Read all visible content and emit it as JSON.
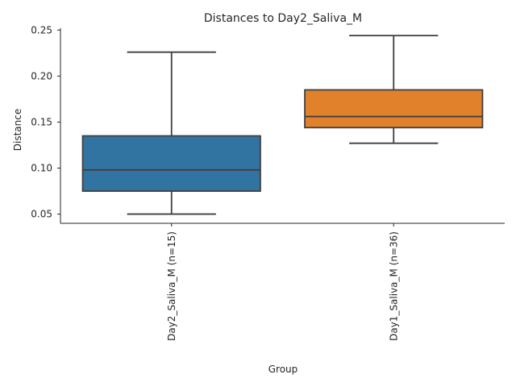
{
  "chart_data": {
    "type": "boxplot",
    "title": "Distances to Day2_Saliva_M",
    "xlabel": "Group",
    "ylabel": "Distance",
    "ylim": [
      0.04,
      0.252
    ],
    "y_ticks": [
      0.05,
      0.1,
      0.15,
      0.2,
      0.25
    ],
    "y_tick_labels": [
      "0.05",
      "0.10",
      "0.15",
      "0.20",
      "0.25"
    ],
    "grid": false,
    "categories": [
      "Day2_Saliva_M (n=15)",
      "Day1_Saliva_M (n=36)"
    ],
    "boxes": [
      {
        "label": "Day2_Saliva_M (n=15)",
        "whisker_low": 0.05,
        "q1": 0.075,
        "median": 0.098,
        "q3": 0.135,
        "whisker_high": 0.226,
        "color": "#3274a1"
      },
      {
        "label": "Day1_Saliva_M (n=36)",
        "whisker_low": 0.127,
        "q1": 0.144,
        "median": 0.156,
        "q3": 0.185,
        "whisker_high": 0.244,
        "color": "#e1812c"
      }
    ],
    "line_color": "#3f3f3f"
  }
}
